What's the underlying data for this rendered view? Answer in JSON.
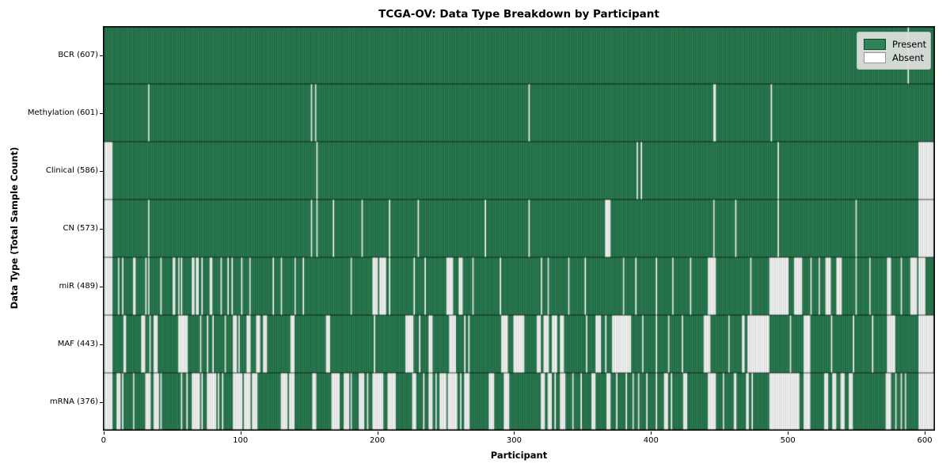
{
  "title": "TCGA-OV: Data Type Breakdown by Participant",
  "axes": {
    "x_label": "Participant",
    "y_label": "Data Type (Total Sample Count)",
    "x_ticks": [
      0,
      100,
      200,
      300,
      400,
      500,
      600
    ]
  },
  "legend": {
    "present_label": "Present",
    "absent_label": "Absent"
  },
  "colors": {
    "present": "#2e8457",
    "present_edge": "rgba(12,48,30,0.65)",
    "absent": "#ffffff",
    "absent_edge": "rgba(130,130,130,0.6)",
    "separator": "rgba(0,0,0,0.85)",
    "frame": "#000000"
  },
  "chart_data": {
    "type": "heatmap",
    "title": "TCGA-OV: Data Type Breakdown by Participant",
    "xlabel": "Participant",
    "ylabel": "Data Type (Total Sample Count)",
    "legend_position": "upper right",
    "n_participants": 608,
    "x_range": [
      0,
      607
    ],
    "states": [
      "Present",
      "Absent"
    ],
    "rows": [
      {
        "name": "BCR",
        "label": "BCR (607)",
        "present_count": 607,
        "absent": [
          [
            588,
            588
          ]
        ]
      },
      {
        "name": "Methylation",
        "label": "Methylation (601)",
        "present_count": 601,
        "absent": [
          [
            33,
            33
          ],
          [
            152,
            152
          ],
          [
            155,
            155
          ],
          [
            311,
            311
          ],
          [
            446,
            447
          ],
          [
            488,
            488
          ]
        ]
      },
      {
        "name": "Clinical",
        "label": "Clinical (586)",
        "present_count": 586,
        "absent": [
          [
            0,
            6
          ],
          [
            156,
            156
          ],
          [
            390,
            390
          ],
          [
            393,
            393
          ],
          [
            493,
            493
          ],
          [
            596,
            606
          ]
        ]
      },
      {
        "name": "CN",
        "label": "CN (573)",
        "present_count": 573,
        "absent": [
          [
            0,
            6
          ],
          [
            33,
            33
          ],
          [
            152,
            152
          ],
          [
            156,
            156
          ],
          [
            168,
            168
          ],
          [
            189,
            189
          ],
          [
            209,
            209
          ],
          [
            230,
            230
          ],
          [
            279,
            279
          ],
          [
            311,
            311
          ],
          [
            367,
            370
          ],
          [
            446,
            446
          ],
          [
            462,
            462
          ],
          [
            493,
            493
          ],
          [
            550,
            550
          ],
          [
            596,
            606
          ]
        ]
      },
      {
        "name": "miR",
        "label": "miR (489)",
        "present_count": 489,
        "absent": [
          [
            0,
            6
          ],
          [
            11,
            11
          ],
          [
            14,
            14
          ],
          [
            22,
            23
          ],
          [
            31,
            31
          ],
          [
            33,
            33
          ],
          [
            42,
            42
          ],
          [
            51,
            52
          ],
          [
            55,
            55
          ],
          [
            57,
            57
          ],
          [
            65,
            66
          ],
          [
            68,
            69
          ],
          [
            72,
            72
          ],
          [
            78,
            79
          ],
          [
            86,
            86
          ],
          [
            91,
            91
          ],
          [
            94,
            94
          ],
          [
            101,
            101
          ],
          [
            107,
            107
          ],
          [
            124,
            124
          ],
          [
            130,
            130
          ],
          [
            140,
            140
          ],
          [
            146,
            146
          ],
          [
            181,
            181
          ],
          [
            197,
            200
          ],
          [
            202,
            206
          ],
          [
            209,
            209
          ],
          [
            227,
            227
          ],
          [
            235,
            235
          ],
          [
            251,
            255
          ],
          [
            260,
            262
          ],
          [
            270,
            270
          ],
          [
            290,
            290
          ],
          [
            320,
            320
          ],
          [
            325,
            325
          ],
          [
            340,
            340
          ],
          [
            352,
            352
          ],
          [
            380,
            380
          ],
          [
            389,
            389
          ],
          [
            404,
            404
          ],
          [
            416,
            416
          ],
          [
            429,
            429
          ],
          [
            442,
            447
          ],
          [
            473,
            473
          ],
          [
            487,
            500
          ],
          [
            505,
            510
          ],
          [
            517,
            517
          ],
          [
            523,
            523
          ],
          [
            528,
            531
          ],
          [
            536,
            539
          ],
          [
            550,
            550
          ],
          [
            560,
            560
          ],
          [
            573,
            575
          ],
          [
            583,
            583
          ],
          [
            590,
            594
          ],
          [
            596,
            600
          ]
        ]
      },
      {
        "name": "MAF",
        "label": "MAF (443)",
        "present_count": 443,
        "absent": [
          [
            0,
            6
          ],
          [
            15,
            16
          ],
          [
            28,
            30
          ],
          [
            34,
            34
          ],
          [
            37,
            39
          ],
          [
            55,
            61
          ],
          [
            71,
            71
          ],
          [
            76,
            76
          ],
          [
            80,
            80
          ],
          [
            89,
            89
          ],
          [
            95,
            97
          ],
          [
            99,
            99
          ],
          [
            105,
            107
          ],
          [
            112,
            114
          ],
          [
            117,
            119
          ],
          [
            137,
            139
          ],
          [
            163,
            165
          ],
          [
            198,
            198
          ],
          [
            221,
            226
          ],
          [
            231,
            231
          ],
          [
            238,
            240
          ],
          [
            253,
            257
          ],
          [
            264,
            264
          ],
          [
            267,
            267
          ],
          [
            291,
            295
          ],
          [
            300,
            307
          ],
          [
            317,
            319
          ],
          [
            322,
            325
          ],
          [
            328,
            331
          ],
          [
            334,
            336
          ],
          [
            353,
            353
          ],
          [
            360,
            363
          ],
          [
            367,
            367
          ],
          [
            372,
            385
          ],
          [
            394,
            394
          ],
          [
            404,
            404
          ],
          [
            413,
            413
          ],
          [
            423,
            423
          ],
          [
            439,
            443
          ],
          [
            457,
            457
          ],
          [
            467,
            468
          ],
          [
            471,
            486
          ],
          [
            502,
            502
          ],
          [
            512,
            516
          ],
          [
            532,
            532
          ],
          [
            548,
            548
          ],
          [
            562,
            562
          ],
          [
            573,
            578
          ],
          [
            596,
            606
          ]
        ]
      },
      {
        "name": "mRNA",
        "label": "mRNA (376)",
        "present_count": 376,
        "absent": [
          [
            0,
            6
          ],
          [
            10,
            12
          ],
          [
            14,
            14
          ],
          [
            22,
            22
          ],
          [
            31,
            34
          ],
          [
            37,
            40
          ],
          [
            42,
            42
          ],
          [
            57,
            57
          ],
          [
            61,
            61
          ],
          [
            65,
            70
          ],
          [
            72,
            72
          ],
          [
            76,
            82
          ],
          [
            84,
            84
          ],
          [
            87,
            87
          ],
          [
            95,
            101
          ],
          [
            103,
            107
          ],
          [
            109,
            112
          ],
          [
            130,
            134
          ],
          [
            136,
            139
          ],
          [
            153,
            155
          ],
          [
            167,
            172
          ],
          [
            176,
            179
          ],
          [
            181,
            181
          ],
          [
            187,
            190
          ],
          [
            193,
            193
          ],
          [
            197,
            204
          ],
          [
            208,
            213
          ],
          [
            226,
            228
          ],
          [
            234,
            234
          ],
          [
            238,
            240
          ],
          [
            243,
            243
          ],
          [
            246,
            250
          ],
          [
            252,
            258
          ],
          [
            261,
            261
          ],
          [
            264,
            267
          ],
          [
            282,
            285
          ],
          [
            293,
            296
          ],
          [
            320,
            322
          ],
          [
            325,
            327
          ],
          [
            330,
            330
          ],
          [
            334,
            337
          ],
          [
            343,
            343
          ],
          [
            349,
            349
          ],
          [
            357,
            359
          ],
          [
            368,
            370
          ],
          [
            375,
            375
          ],
          [
            382,
            382
          ],
          [
            387,
            387
          ],
          [
            391,
            391
          ],
          [
            397,
            397
          ],
          [
            404,
            404
          ],
          [
            410,
            412
          ],
          [
            415,
            415
          ],
          [
            424,
            426
          ],
          [
            442,
            447
          ],
          [
            453,
            453
          ],
          [
            461,
            462
          ],
          [
            470,
            471
          ],
          [
            474,
            474
          ],
          [
            487,
            508
          ],
          [
            512,
            516
          ],
          [
            527,
            529
          ],
          [
            533,
            535
          ],
          [
            539,
            541
          ],
          [
            545,
            547
          ],
          [
            572,
            575
          ],
          [
            579,
            579
          ],
          [
            583,
            583
          ],
          [
            586,
            586
          ],
          [
            596,
            607
          ]
        ]
      }
    ]
  }
}
